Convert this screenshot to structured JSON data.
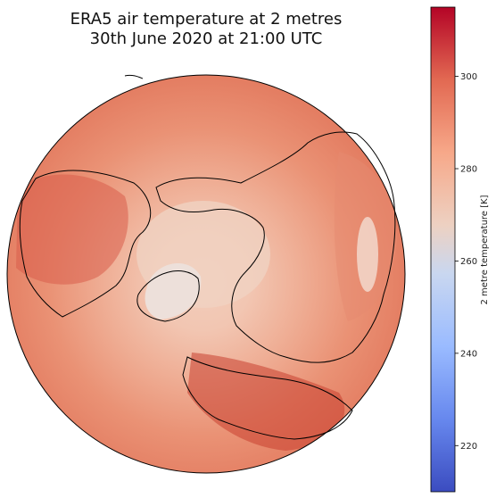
{
  "title": {
    "line1": "ERA5 air temperature at 2 metres",
    "line2": "30th June 2020 at 21:00 UTC"
  },
  "map": {
    "projection": "orthographic (north polar view)",
    "variable": "2 metre temperature",
    "colormap": "coolwarm",
    "coastlines": true
  },
  "colorbar": {
    "label": "2 metre temperature [K]",
    "ticks": [
      "220",
      "240",
      "260",
      "280",
      "300"
    ],
    "tick_values": [
      220,
      240,
      260,
      280,
      300
    ],
    "min": 210,
    "max": 315,
    "colors": [
      "#3b4cc0",
      "#6788ee",
      "#9abbff",
      "#c9d7f0",
      "#edd1c2",
      "#f7a889",
      "#e26952",
      "#b40426"
    ]
  }
}
